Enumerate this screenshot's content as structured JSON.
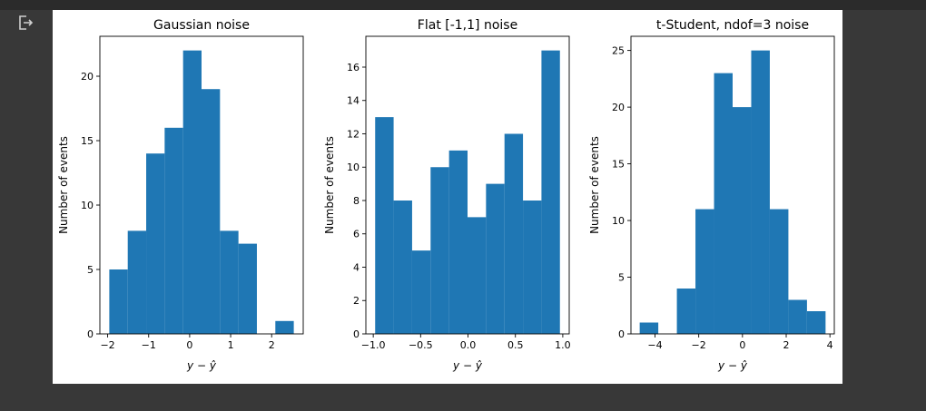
{
  "cell": {
    "output_icon": "output-redirect-icon"
  },
  "colors": {
    "bar": "#1f77b4",
    "page_bg": "#383838",
    "figure_bg": "#ffffff"
  },
  "chart_data": [
    {
      "type": "bar",
      "title": "Gaussian noise",
      "xlabel": "y − ŷ",
      "ylabel": "Number of events",
      "bin_edges": [
        -1.96,
        -1.51,
        -1.06,
        -0.61,
        -0.16,
        0.29,
        0.74,
        1.19,
        1.64,
        2.09,
        2.54
      ],
      "values": [
        5,
        8,
        14,
        16,
        22,
        19,
        8,
        7,
        0,
        1
      ],
      "xlim": [
        -2.19,
        2.77
      ],
      "ylim": [
        0,
        23.1
      ],
      "xticks": [
        -2,
        -1,
        0,
        1,
        2
      ],
      "xtick_labels": [
        "−2",
        "−1",
        "0",
        "1",
        "2"
      ],
      "yticks": [
        0,
        5,
        10,
        15,
        20
      ],
      "ytick_labels": [
        "0",
        "5",
        "10",
        "15",
        "20"
      ],
      "grid": false
    },
    {
      "type": "bar",
      "title": "Flat [-1,1] noise",
      "xlabel": "y − ŷ",
      "ylabel": "Number of events",
      "bin_edges": [
        -0.98,
        -0.785,
        -0.59,
        -0.395,
        -0.2,
        -0.005,
        0.19,
        0.385,
        0.58,
        0.775,
        0.97
      ],
      "values": [
        13,
        8,
        5,
        10,
        11,
        7,
        9,
        12,
        8,
        17
      ],
      "xlim": [
        -1.078,
        1.068
      ],
      "ylim": [
        0,
        17.85
      ],
      "xticks": [
        -1.0,
        -0.5,
        0.0,
        0.5,
        1.0
      ],
      "xtick_labels": [
        "−1.0",
        "−0.5",
        "0.0",
        "0.5",
        "1.0"
      ],
      "yticks": [
        0,
        2,
        4,
        6,
        8,
        10,
        12,
        14,
        16
      ],
      "ytick_labels": [
        "0",
        "2",
        "4",
        "6",
        "8",
        "10",
        "12",
        "14",
        "16"
      ],
      "grid": false
    },
    {
      "type": "bar",
      "title": "t-Student, ndof=3 noise",
      "xlabel": "y − ŷ",
      "ylabel": "Number of events",
      "bin_edges": [
        -4.7,
        -3.85,
        -3.0,
        -2.15,
        -1.3,
        -0.45,
        0.4,
        1.25,
        2.1,
        2.95,
        3.8
      ],
      "values": [
        1,
        0,
        4,
        11,
        23,
        20,
        25,
        11,
        3,
        2
      ],
      "xlim": [
        -5.1,
        4.2
      ],
      "ylim": [
        0,
        26.25
      ],
      "xticks": [
        -4,
        -2,
        0,
        2,
        4
      ],
      "xtick_labels": [
        "−4",
        "−2",
        "0",
        "2",
        "4"
      ],
      "yticks": [
        0,
        5,
        10,
        15,
        20,
        25
      ],
      "ytick_labels": [
        "0",
        "5",
        "10",
        "15",
        "20",
        "25"
      ],
      "grid": false
    }
  ]
}
